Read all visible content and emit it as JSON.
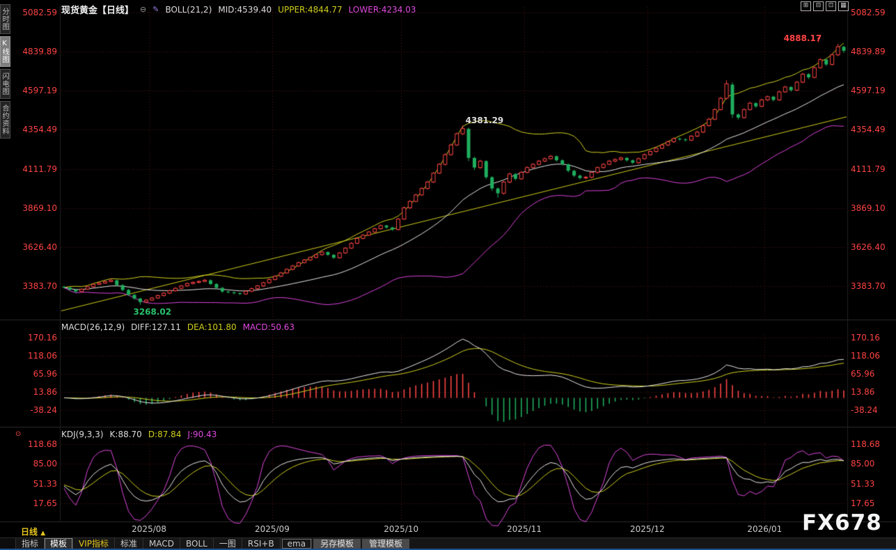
{
  "colors": {
    "up": "#fd4545",
    "down": "#1fae5e",
    "axis_text": "#ff4343",
    "boll_mid": "#e8e8e8",
    "boll_upper": "#d2d222",
    "boll_lower": "#dd44dd",
    "grid": "rgba(150,45,45,0.55)",
    "divider": "#2b2b2b",
    "diff_line": "#e8e8e8",
    "dea_line": "#d2d222",
    "k_line": "#e8e8e8",
    "d_line": "#d2d222",
    "j_line": "#e049e0",
    "trendline": "#cfcf1e"
  },
  "sidebar": {
    "items": [
      {
        "label": "分时图"
      },
      {
        "label": "K线图",
        "active": true
      },
      {
        "label": "闪电图"
      },
      {
        "label": "合约资料"
      }
    ]
  },
  "header": {
    "symbol": "现货黄金【日线】",
    "collapse_icon": "⊖",
    "pen_icon": "✎",
    "boll": {
      "name": "BOLL(21,2)",
      "mid": "MID:4539.40",
      "upper": "UPPER:4844.77",
      "lower": "LOWER:4234.03"
    },
    "window_icons": [
      {
        "name": "layout-single-icon",
        "glyph": "⊞"
      },
      {
        "name": "layout-two-pane-icon",
        "glyph": "⊟"
      },
      {
        "name": "layout-three-pane-icon",
        "glyph": "⊡"
      },
      {
        "name": "layout-grid-icon",
        "glyph": "▦"
      }
    ]
  },
  "macd_header": {
    "name": "MACD(26,12,9)",
    "diff": "DIFF:127.11",
    "dea": "DEA:101.80",
    "macd": "MACD:50.63"
  },
  "kdj_header": {
    "name": "KDJ(9,3,3)",
    "k": "K:88.70",
    "d": "D:87.84",
    "j": "J:90.43"
  },
  "alert_dot": "⊙",
  "arrow_up": "↑",
  "period": {
    "label": "日线",
    "arrow": "▲"
  },
  "watermark": "FX678",
  "footer": {
    "tabs": [
      {
        "id": "indicators",
        "label": "指标",
        "style": "plain"
      },
      {
        "id": "templates",
        "label": "模板",
        "style": "selected"
      },
      {
        "id": "vip-indicators",
        "label": "VIP指标",
        "style": "plain",
        "accent": "yellow"
      },
      {
        "id": "standard",
        "label": "标准",
        "style": "plain"
      },
      {
        "id": "macd",
        "label": "MACD",
        "style": "plain"
      },
      {
        "id": "boll",
        "label": "BOLL",
        "style": "plain"
      },
      {
        "id": "one-chart",
        "label": "一图",
        "style": "plain"
      },
      {
        "id": "rsi-b",
        "label": "RSI+B",
        "style": "plain"
      },
      {
        "id": "ema",
        "label": "ema",
        "style": "boxed"
      },
      {
        "id": "save-template",
        "label": "另存模板",
        "style": "button"
      },
      {
        "id": "manage-templates",
        "label": "管理模板",
        "style": "button"
      }
    ]
  },
  "chart_data": {
    "type": "candlestick",
    "symbol": "现货黄金",
    "period": "日线",
    "indicators": {
      "boll": {
        "period": 21,
        "mult": 2
      },
      "macd": {
        "fast": 12,
        "slow": 26,
        "signal": 9
      },
      "kdj": {
        "n": 9,
        "k": 3,
        "d": 3
      }
    },
    "y_axis_main": [
      "5082.59",
      "4839.89",
      "4597.19",
      "4354.49",
      "4111.79",
      "3869.10",
      "3626.40",
      "3383.70"
    ],
    "y_axis_macd": [
      "170.16",
      "118.06",
      "65.96",
      "13.86",
      "-38.24"
    ],
    "y_axis_kdj": [
      "118.68",
      "85.00",
      "51.33",
      "17.65"
    ],
    "x_ticks": [
      {
        "label": "2025/08",
        "index": 15
      },
      {
        "label": "2025/09",
        "index": 36
      },
      {
        "label": "2025/10",
        "index": 58
      },
      {
        "label": "2025/11",
        "index": 79
      },
      {
        "label": "2025/12",
        "index": 100
      },
      {
        "label": "2026/01",
        "index": 120
      }
    ],
    "annotations": {
      "recent_high": {
        "text": "4888.17",
        "candle_index": 132
      },
      "peak": {
        "text": "4381.29",
        "candle_index": 68
      },
      "low": {
        "text": "3268.02",
        "candle_index": 13
      }
    },
    "trendline": {
      "start_price": 3230,
      "end_price": 4435
    },
    "candles": [
      [
        3380,
        3385,
        3368,
        3375
      ],
      [
        3375,
        3380,
        3355,
        3362
      ],
      [
        3362,
        3367,
        3342,
        3350
      ],
      [
        3350,
        3370,
        3345,
        3365
      ],
      [
        3365,
        3386,
        3360,
        3380
      ],
      [
        3380,
        3400,
        3375,
        3395
      ],
      [
        3395,
        3409,
        3390,
        3403
      ],
      [
        3403,
        3418,
        3398,
        3412
      ],
      [
        3412,
        3427,
        3407,
        3420
      ],
      [
        3420,
        3424,
        3383,
        3390
      ],
      [
        3390,
        3395,
        3352,
        3360
      ],
      [
        3360,
        3366,
        3322,
        3330
      ],
      [
        3330,
        3334,
        3298,
        3307
      ],
      [
        3307,
        3311,
        3268.02,
        3285
      ],
      [
        3285,
        3303,
        3278,
        3297
      ],
      [
        3297,
        3316,
        3291,
        3310
      ],
      [
        3310,
        3331,
        3304,
        3325
      ],
      [
        3325,
        3346,
        3319,
        3340
      ],
      [
        3340,
        3362,
        3334,
        3355
      ],
      [
        3355,
        3376,
        3349,
        3370
      ],
      [
        3370,
        3391,
        3364,
        3385
      ],
      [
        3385,
        3407,
        3379,
        3400
      ],
      [
        3400,
        3413,
        3394,
        3407
      ],
      [
        3407,
        3419,
        3401,
        3413
      ],
      [
        3413,
        3428,
        3408,
        3420
      ],
      [
        3420,
        3425,
        3390,
        3397
      ],
      [
        3397,
        3402,
        3366,
        3373
      ],
      [
        3373,
        3378,
        3342,
        3350
      ],
      [
        3350,
        3356,
        3338,
        3345
      ],
      [
        3345,
        3351,
        3333,
        3340
      ],
      [
        3340,
        3346,
        3328,
        3335
      ],
      [
        3335,
        3358,
        3330,
        3352
      ],
      [
        3352,
        3374,
        3346,
        3368
      ],
      [
        3368,
        3391,
        3362,
        3385
      ],
      [
        3385,
        3411,
        3379,
        3405
      ],
      [
        3405,
        3431,
        3399,
        3425
      ],
      [
        3425,
        3452,
        3419,
        3445
      ],
      [
        3445,
        3472,
        3439,
        3466
      ],
      [
        3466,
        3494,
        3460,
        3488
      ],
      [
        3488,
        3516,
        3482,
        3509
      ],
      [
        3509,
        3536,
        3503,
        3530
      ],
      [
        3530,
        3552,
        3524,
        3546
      ],
      [
        3546,
        3568,
        3540,
        3562
      ],
      [
        3562,
        3585,
        3556,
        3579
      ],
      [
        3579,
        3602,
        3573,
        3595
      ],
      [
        3595,
        3600,
        3570,
        3578
      ],
      [
        3578,
        3583,
        3552,
        3560
      ],
      [
        3560,
        3596,
        3554,
        3590
      ],
      [
        3590,
        3626,
        3584,
        3620
      ],
      [
        3620,
        3657,
        3614,
        3650
      ],
      [
        3650,
        3686,
        3644,
        3680
      ],
      [
        3680,
        3707,
        3674,
        3700
      ],
      [
        3700,
        3726,
        3694,
        3720
      ],
      [
        3720,
        3747,
        3714,
        3740
      ],
      [
        3740,
        3766,
        3734,
        3760
      ],
      [
        3760,
        3765,
        3740,
        3748
      ],
      [
        3748,
        3753,
        3727,
        3735
      ],
      [
        3735,
        3808,
        3730,
        3800
      ],
      [
        3800,
        3878,
        3795,
        3870
      ],
      [
        3870,
        3917,
        3863,
        3910
      ],
      [
        3910,
        3957,
        3904,
        3950
      ],
      [
        3950,
        3997,
        3944,
        3990
      ],
      [
        3990,
        4037,
        3984,
        4030
      ],
      [
        4030,
        4092,
        4024,
        4085
      ],
      [
        4085,
        4148,
        4079,
        4140
      ],
      [
        4140,
        4208,
        4134,
        4200
      ],
      [
        4200,
        4268,
        4194,
        4260
      ],
      [
        4260,
        4338,
        4254,
        4330
      ],
      [
        4330,
        4381.29,
        4322,
        4362
      ],
      [
        4360,
        4368,
        4160,
        4180
      ],
      [
        4180,
        4186,
        4105,
        4120
      ],
      [
        4120,
        4168,
        4112,
        4160
      ],
      [
        4160,
        4165,
        4048,
        4060
      ],
      [
        4060,
        4066,
        3975,
        3990
      ],
      [
        3990,
        3996,
        3932,
        3960
      ],
      [
        3960,
        4038,
        3952,
        4030
      ],
      [
        4030,
        4088,
        4022,
        4080
      ],
      [
        4080,
        4086,
        4040,
        4050
      ],
      [
        4050,
        4098,
        4044,
        4090
      ],
      [
        4090,
        4128,
        4084,
        4120
      ],
      [
        4120,
        4147,
        4113,
        4140
      ],
      [
        4140,
        4167,
        4133,
        4160
      ],
      [
        4160,
        4182,
        4153,
        4175
      ],
      [
        4175,
        4198,
        4169,
        4190
      ],
      [
        4190,
        4195,
        4157,
        4165
      ],
      [
        4165,
        4171,
        4132,
        4140
      ],
      [
        4140,
        4146,
        4090,
        4100
      ],
      [
        4100,
        4106,
        4060,
        4070
      ],
      [
        4070,
        4077,
        4046,
        4055
      ],
      [
        4055,
        4068,
        4048,
        4060
      ],
      [
        4060,
        4097,
        4053,
        4090
      ],
      [
        4090,
        4127,
        4083,
        4120
      ],
      [
        4120,
        4147,
        4113,
        4140
      ],
      [
        4140,
        4168,
        4134,
        4160
      ],
      [
        4160,
        4177,
        4153,
        4170
      ],
      [
        4170,
        4188,
        4163,
        4180
      ],
      [
        4180,
        4185,
        4156,
        4165
      ],
      [
        4165,
        4170,
        4141,
        4150
      ],
      [
        4150,
        4182,
        4144,
        4175
      ],
      [
        4175,
        4208,
        4169,
        4200
      ],
      [
        4200,
        4227,
        4193,
        4220
      ],
      [
        4220,
        4247,
        4213,
        4240
      ],
      [
        4240,
        4268,
        4234,
        4260
      ],
      [
        4260,
        4287,
        4253,
        4280
      ],
      [
        4280,
        4308,
        4274,
        4300
      ],
      [
        4300,
        4307,
        4286,
        4295
      ],
      [
        4295,
        4302,
        4281,
        4290
      ],
      [
        4290,
        4322,
        4284,
        4315
      ],
      [
        4315,
        4348,
        4309,
        4340
      ],
      [
        4340,
        4388,
        4334,
        4380
      ],
      [
        4380,
        4428,
        4374,
        4420
      ],
      [
        4420,
        4488,
        4414,
        4480
      ],
      [
        4480,
        4558,
        4474,
        4550
      ],
      [
        4550,
        4662,
        4542,
        4640
      ],
      [
        4635,
        4648,
        4428,
        4450
      ],
      [
        4450,
        4456,
        4418,
        4430
      ],
      [
        4430,
        4488,
        4424,
        4480
      ],
      [
        4480,
        4528,
        4474,
        4520
      ],
      [
        4520,
        4526,
        4490,
        4500
      ],
      [
        4500,
        4548,
        4494,
        4540
      ],
      [
        4540,
        4567,
        4533,
        4560
      ],
      [
        4560,
        4566,
        4530,
        4540
      ],
      [
        4540,
        4598,
        4534,
        4590
      ],
      [
        4590,
        4628,
        4584,
        4620
      ],
      [
        4620,
        4626,
        4590,
        4600
      ],
      [
        4600,
        4658,
        4594,
        4650
      ],
      [
        4650,
        4708,
        4644,
        4700
      ],
      [
        4700,
        4706,
        4670,
        4680
      ],
      [
        4680,
        4748,
        4674,
        4740
      ],
      [
        4740,
        4798,
        4734,
        4790
      ],
      [
        4790,
        4796,
        4750,
        4760
      ],
      [
        4760,
        4828,
        4754,
        4820
      ],
      [
        4820,
        4888.17,
        4812,
        4870
      ],
      [
        4870,
        4876,
        4832,
        4845
      ]
    ]
  }
}
